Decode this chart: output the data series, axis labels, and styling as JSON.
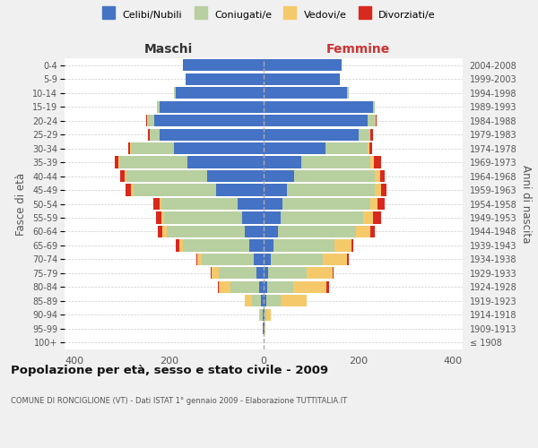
{
  "age_groups": [
    "100+",
    "95-99",
    "90-94",
    "85-89",
    "80-84",
    "75-79",
    "70-74",
    "65-69",
    "60-64",
    "55-59",
    "50-54",
    "45-49",
    "40-44",
    "35-39",
    "30-34",
    "25-29",
    "20-24",
    "15-19",
    "10-14",
    "5-9",
    "0-4"
  ],
  "birth_years": [
    "≤ 1908",
    "1909-1913",
    "1914-1918",
    "1919-1923",
    "1924-1928",
    "1929-1933",
    "1934-1938",
    "1939-1943",
    "1944-1948",
    "1949-1953",
    "1954-1958",
    "1959-1963",
    "1964-1968",
    "1969-1973",
    "1974-1978",
    "1979-1983",
    "1984-1988",
    "1989-1993",
    "1994-1998",
    "1999-2003",
    "2004-2008"
  ],
  "colors": {
    "celibi": "#4472c4",
    "coniugati": "#b8cfa0",
    "vedovi": "#f5c96a",
    "divorziati": "#d9281e"
  },
  "maschi": {
    "celibi": [
      0,
      1,
      2,
      5,
      10,
      15,
      20,
      30,
      40,
      45,
      55,
      100,
      120,
      160,
      190,
      220,
      230,
      220,
      185,
      165,
      170
    ],
    "coniugati": [
      0,
      1,
      5,
      20,
      60,
      80,
      110,
      140,
      165,
      165,
      160,
      175,
      170,
      145,
      90,
      20,
      15,
      5,
      5,
      0,
      0
    ],
    "vedovi": [
      0,
      0,
      2,
      15,
      25,
      15,
      10,
      8,
      8,
      5,
      5,
      5,
      3,
      2,
      1,
      1,
      1,
      0,
      0,
      0,
      0
    ],
    "divorziati": [
      0,
      0,
      0,
      0,
      2,
      2,
      2,
      8,
      10,
      12,
      12,
      12,
      10,
      8,
      5,
      3,
      1,
      0,
      0,
      0,
      0
    ]
  },
  "femmine": {
    "celibi": [
      0,
      1,
      2,
      5,
      8,
      10,
      15,
      20,
      30,
      35,
      40,
      50,
      65,
      80,
      130,
      200,
      220,
      230,
      175,
      160,
      165
    ],
    "coniugati": [
      0,
      1,
      3,
      30,
      55,
      80,
      110,
      130,
      165,
      175,
      185,
      185,
      170,
      145,
      90,
      25,
      15,
      5,
      5,
      0,
      0
    ],
    "vedovi": [
      0,
      2,
      10,
      55,
      70,
      55,
      50,
      35,
      30,
      20,
      15,
      12,
      10,
      8,
      3,
      1,
      1,
      0,
      0,
      0,
      0
    ],
    "divorziati": [
      0,
      0,
      0,
      0,
      5,
      3,
      5,
      5,
      10,
      18,
      15,
      12,
      10,
      15,
      5,
      5,
      2,
      0,
      0,
      0,
      0
    ]
  },
  "xlim": 420,
  "title": "Popolazione per età, sesso e stato civile - 2009",
  "subtitle": "COMUNE DI RONCIGLIONE (VT) - Dati ISTAT 1° gennaio 2009 - Elaborazione TUTTITALIA.IT",
  "ylabel_left": "Fasce di età",
  "ylabel_right": "Anni di nascita",
  "xlabel_maschi": "Maschi",
  "xlabel_femmine": "Femmine",
  "legend_labels": [
    "Celibi/Nubili",
    "Coniugati/e",
    "Vedovi/e",
    "Divorziati/e"
  ],
  "bg_color": "#f0f0f0",
  "plot_bg": "#ffffff"
}
